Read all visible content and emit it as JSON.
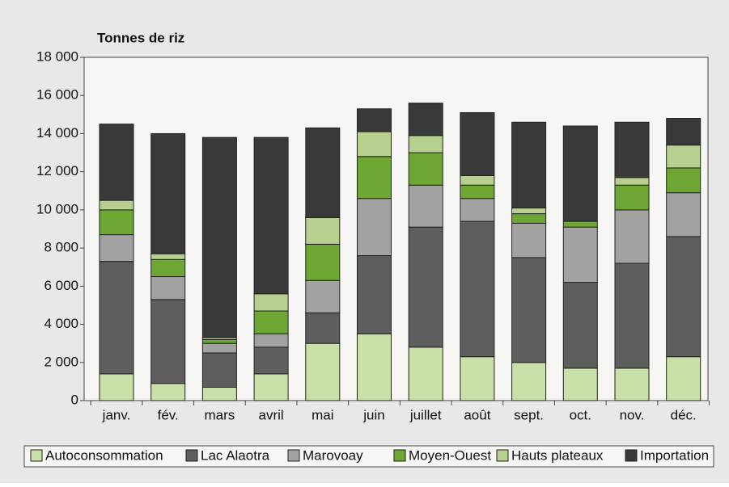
{
  "chart_data": {
    "type": "stacked_bar",
    "title": "Tonnes de riz",
    "categories": [
      "janv.",
      "fév.",
      "mars",
      "avril",
      "mai",
      "juin",
      "juillet",
      "août",
      "sept.",
      "oct.",
      "nov.",
      "déc."
    ],
    "series": [
      {
        "name": "Autoconsommation",
        "color": "#c9e0a9",
        "values": [
          1400,
          900,
          700,
          1400,
          3000,
          3500,
          2800,
          2300,
          2000,
          1700,
          1700,
          2300
        ]
      },
      {
        "name": "Lac Alaotra",
        "color": "#5e5e5e",
        "values": [
          5900,
          4400,
          1800,
          1400,
          1600,
          4100,
          6300,
          7100,
          5500,
          4500,
          5500,
          6300
        ]
      },
      {
        "name": "Marovoay",
        "color": "#a2a2a2",
        "values": [
          1400,
          1200,
          500,
          700,
          1700,
          3000,
          2200,
          1200,
          1800,
          2900,
          2800,
          2300
        ]
      },
      {
        "name": "Moyen-Ouest",
        "color": "#6da632",
        "values": [
          1300,
          900,
          200,
          1200,
          1900,
          2200,
          1700,
          700,
          500,
          300,
          1300,
          1300
        ]
      },
      {
        "name": "Hauts plateaux",
        "color": "#b7cf8f",
        "values": [
          500,
          300,
          100,
          900,
          1400,
          1300,
          900,
          500,
          300,
          0,
          400,
          1200
        ]
      },
      {
        "name": "Importation",
        "color": "#393939",
        "values": [
          4000,
          6300,
          10500,
          8200,
          4700,
          1200,
          1700,
          3300,
          4500,
          5000,
          2900,
          1400
        ]
      }
    ],
    "ylim": [
      0,
      18000
    ],
    "yticks": [
      0,
      {
        "value": 2000,
        "label": "2 000"
      },
      {
        "value": 4000,
        "label": "4 000"
      },
      {
        "value": 6000,
        "label": "6 000"
      },
      {
        "value": 8000,
        "label": "8 000"
      },
      {
        "value": 10000,
        "label": "10 000"
      },
      {
        "value": 12000,
        "label": "12 000"
      },
      {
        "value": 14000,
        "label": "14 000"
      },
      {
        "value": 16000,
        "label": "16 000"
      },
      {
        "value": 18000,
        "label": "18 000"
      }
    ]
  }
}
